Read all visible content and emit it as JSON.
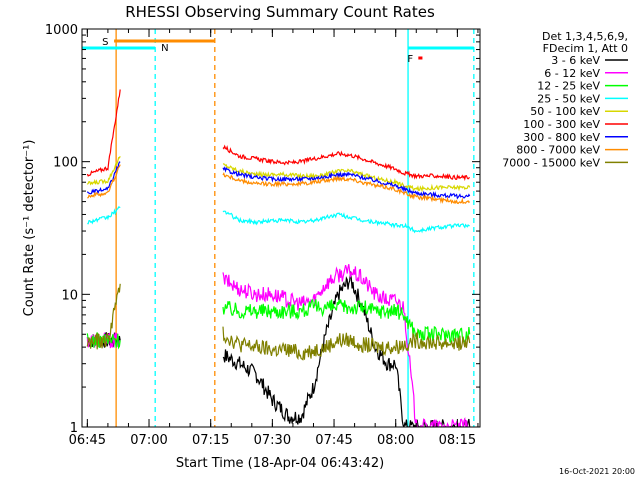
{
  "chart_data": {
    "type": "line",
    "title": "RHESSI Observing Summary Count Rates",
    "xlabel": "Start Time (18-Apr-04 06:43:42)",
    "ylabel": "Count Rate (s⁻¹ detector⁻¹)",
    "y_scale": "log",
    "ylim": [
      1,
      1000
    ],
    "xlim": [
      "06:43:42",
      "08:20:30"
    ],
    "x_ticks": [
      "06:45",
      "07:00",
      "07:15",
      "07:30",
      "07:45",
      "08:00",
      "08:15"
    ],
    "y_ticks": [
      "1",
      "10",
      "100",
      "1000"
    ],
    "legend_position": "right",
    "legend_header": [
      "Det 1,3,4,5,6,9,",
      "FDecim 1, Att 0"
    ],
    "timestamp": "16-Oct-2021 20:00",
    "data_gap": [
      "07:01:30",
      "07:18:00"
    ],
    "series": [
      {
        "name": "3 - 6 keV",
        "color": "#000000",
        "x": [
          "06:45",
          "06:50",
          "06:53",
          "07:18",
          "07:22",
          "07:26",
          "07:30",
          "07:34",
          "07:37",
          "07:40",
          "07:43",
          "07:46",
          "07:49",
          "07:52",
          "07:55",
          "07:58",
          "08:00",
          "08:02",
          "08:05",
          "08:10",
          "08:15",
          "08:18"
        ],
        "y": [
          4.5,
          4.5,
          4.5,
          3.5,
          3,
          2.5,
          1.6,
          1.2,
          1.2,
          2,
          5,
          10,
          13,
          8,
          4,
          3,
          3,
          1,
          1,
          1,
          1,
          1
        ]
      },
      {
        "name": "6 - 12 keV",
        "color": "#ff00ff",
        "x": [
          "06:45",
          "06:50",
          "06:53",
          "07:18",
          "07:22",
          "07:26",
          "07:30",
          "07:34",
          "07:37",
          "07:40",
          "07:43",
          "07:46",
          "07:49",
          "07:52",
          "07:55",
          "07:58",
          "08:00",
          "08:02",
          "08:05",
          "08:10",
          "08:15",
          "08:18"
        ],
        "y": [
          4.5,
          4.5,
          4.5,
          13,
          11,
          10,
          10,
          9,
          8.5,
          9,
          12,
          14,
          15,
          13,
          10,
          9,
          9,
          8,
          1,
          1,
          1,
          1
        ]
      },
      {
        "name": "12 - 25 keV",
        "color": "#00ff00",
        "x": [
          "06:45",
          "06:50",
          "06:53",
          "07:18",
          "07:22",
          "07:26",
          "07:30",
          "07:34",
          "07:37",
          "07:40",
          "07:43",
          "07:46",
          "07:49",
          "07:52",
          "07:55",
          "07:58",
          "08:00",
          "08:02",
          "08:05",
          "08:10",
          "08:15",
          "08:18"
        ],
        "y": [
          4.5,
          4.5,
          4.5,
          8,
          7.5,
          7.5,
          7.5,
          7.5,
          7.5,
          8,
          8,
          8,
          8,
          8,
          7.5,
          7.5,
          7.5,
          7,
          5,
          5,
          5,
          5
        ]
      },
      {
        "name": "25 - 50 keV",
        "color": "#00ffff",
        "x": [
          "06:45",
          "06:50",
          "06:53",
          "07:18",
          "07:22",
          "07:26",
          "07:30",
          "07:34",
          "07:37",
          "07:40",
          "07:43",
          "07:46",
          "07:49",
          "07:52",
          "07:55",
          "07:58",
          "08:00",
          "08:02",
          "08:05",
          "08:10",
          "08:15",
          "08:18"
        ],
        "y": [
          35,
          38,
          45,
          43,
          36,
          35,
          36,
          36,
          35,
          36,
          38,
          40,
          38,
          36,
          35,
          34,
          33,
          33,
          30,
          32,
          33,
          33
        ]
      },
      {
        "name": "50 - 100 keV",
        "color": "#d7d700",
        "x": [
          "06:45",
          "06:50",
          "06:53",
          "07:18",
          "07:22",
          "07:26",
          "07:30",
          "07:34",
          "07:37",
          "07:40",
          "07:43",
          "07:46",
          "07:49",
          "07:52",
          "07:55",
          "07:58",
          "08:00",
          "08:02",
          "08:05",
          "08:10",
          "08:15",
          "08:18"
        ],
        "y": [
          68,
          72,
          110,
          95,
          85,
          80,
          80,
          80,
          78,
          78,
          80,
          85,
          85,
          80,
          75,
          72,
          70,
          66,
          62,
          64,
          64,
          64
        ]
      },
      {
        "name": "100 - 300 keV",
        "color": "#ff0000",
        "x": [
          "06:45",
          "06:50",
          "06:53",
          "07:18",
          "07:22",
          "07:26",
          "07:30",
          "07:34",
          "07:37",
          "07:40",
          "07:43",
          "07:46",
          "07:49",
          "07:52",
          "07:55",
          "07:58",
          "08:00",
          "08:02",
          "08:05",
          "08:10",
          "08:15",
          "08:18"
        ],
        "y": [
          80,
          90,
          350,
          130,
          110,
          105,
          100,
          98,
          100,
          105,
          110,
          115,
          112,
          105,
          98,
          92,
          88,
          82,
          78,
          78,
          76,
          76
        ]
      },
      {
        "name": "300 - 800 keV",
        "color": "#0000ff",
        "x": [
          "06:45",
          "06:50",
          "06:53",
          "07:18",
          "07:22",
          "07:26",
          "07:30",
          "07:34",
          "07:37",
          "07:40",
          "07:43",
          "07:46",
          "07:49",
          "07:52",
          "07:55",
          "07:58",
          "08:00",
          "08:02",
          "08:05",
          "08:10",
          "08:15",
          "08:18"
        ],
        "y": [
          58,
          62,
          100,
          88,
          80,
          76,
          74,
          74,
          74,
          75,
          77,
          80,
          80,
          76,
          72,
          68,
          66,
          62,
          58,
          56,
          55,
          55
        ]
      },
      {
        "name": "800 - 7000 keV",
        "color": "#ff8c00",
        "x": [
          "06:45",
          "06:50",
          "06:53",
          "07:18",
          "07:22",
          "07:26",
          "07:30",
          "07:34",
          "07:37",
          "07:40",
          "07:43",
          "07:46",
          "07:49",
          "07:52",
          "07:55",
          "07:58",
          "08:00",
          "08:02",
          "08:05",
          "08:10",
          "08:15",
          "08:18"
        ],
        "y": [
          55,
          58,
          95,
          80,
          72,
          68,
          68,
          68,
          68,
          70,
          72,
          75,
          74,
          70,
          66,
          64,
          62,
          58,
          54,
          52,
          50,
          50
        ]
      },
      {
        "name": "7000 - 15000 keV",
        "color": "#808000",
        "x": [
          "06:45",
          "06:50",
          "06:53",
          "07:18",
          "07:22",
          "07:26",
          "07:30",
          "07:34",
          "07:37",
          "07:40",
          "07:43",
          "07:46",
          "07:49",
          "07:52",
          "07:55",
          "07:58",
          "08:00",
          "08:02",
          "08:05",
          "08:10",
          "08:15",
          "08:18"
        ],
        "y": [
          4.3,
          4.5,
          12,
          5,
          4.2,
          4,
          3.8,
          3.8,
          3.6,
          3.8,
          4,
          4.5,
          4.5,
          4.2,
          4,
          4,
          4,
          4.2,
          4.5,
          4.3,
          4.3,
          4.3
        ]
      }
    ],
    "flags": [
      {
        "label": "S",
        "color": "#ff8c00",
        "start": "06:51:30",
        "end": "07:16:00"
      },
      {
        "label": "N",
        "color": "#00ffff",
        "start": "06:43:42",
        "end": "07:01:30"
      },
      {
        "label": "F",
        "color": "#ff0000",
        "start": "08:05:30",
        "end": "08:06:30"
      }
    ],
    "markers": [
      {
        "time": "06:52:00",
        "color": "#ff8c00",
        "style": "solid"
      },
      {
        "time": "07:16:00",
        "color": "#ff8c00",
        "style": "dashed"
      },
      {
        "time": "07:01:30",
        "color": "#00ffff",
        "style": "dashed"
      },
      {
        "time": "08:03:00",
        "color": "#00ffff",
        "style": "solid"
      },
      {
        "time": "08:19:00",
        "color": "#00ffff",
        "style": "dashed"
      }
    ],
    "eclipse_bar": {
      "color": "#00ffff",
      "segments": [
        [
          "06:43:42",
          "07:01:30"
        ],
        [
          "08:03:00",
          "08:19:00"
        ]
      ]
    }
  }
}
